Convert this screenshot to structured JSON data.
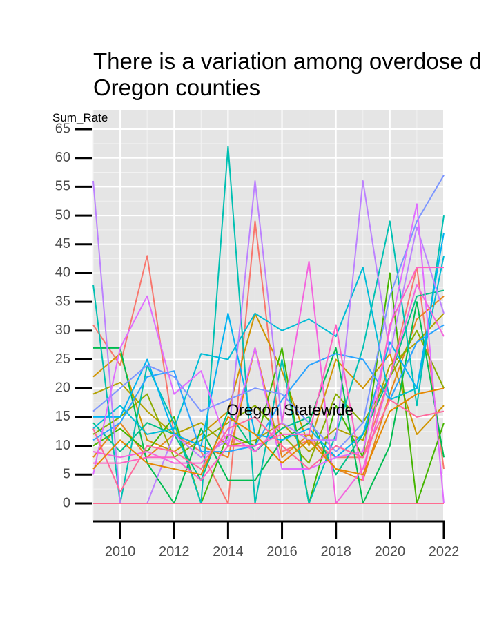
{
  "title_lines": [
    "There is a variation among overdose d",
    "Oregon counties"
  ],
  "chart_data": {
    "type": "line",
    "title": "There is a variation among overdose d Oregon counties",
    "ylabel": "Sum_Rate",
    "xlabel": "",
    "xlim": [
      2009,
      2022
    ],
    "ylim": [
      0,
      65
    ],
    "x_ticks": [
      2010,
      2012,
      2014,
      2016,
      2018,
      2020,
      2022
    ],
    "y_ticks": [
      0,
      5,
      10,
      15,
      20,
      25,
      30,
      35,
      40,
      45,
      50,
      55,
      60,
      65
    ],
    "grid": true,
    "legend": "none",
    "annotations": [
      {
        "text": "Oregon Statewide",
        "x": 2016.3,
        "y": 16
      }
    ],
    "x": [
      2009,
      2010,
      2011,
      2012,
      2013,
      2014,
      2015,
      2016,
      2017,
      2018,
      2019,
      2020,
      2021,
      2022
    ],
    "series": [
      {
        "color": "#F8766D",
        "values": [
          31,
          24,
          43,
          12,
          9,
          0,
          49,
          9,
          11,
          8,
          8,
          22,
          41,
          6
        ]
      },
      {
        "color": "#E7851E",
        "values": [
          8,
          14,
          8,
          12,
          10,
          8,
          27,
          8,
          12,
          6,
          4,
          19,
          32,
          36
        ]
      },
      {
        "color": "#D09400",
        "values": [
          22,
          26,
          11,
          9,
          12,
          16,
          33,
          23,
          10,
          25,
          20,
          26,
          12,
          17
        ]
      },
      {
        "color": "#B2A100",
        "values": [
          19,
          21,
          16,
          12,
          14,
          10,
          11,
          14,
          9,
          13,
          11,
          24,
          28,
          33
        ]
      },
      {
        "color": "#89AC00",
        "values": [
          12,
          15,
          19,
          8,
          11,
          14,
          17,
          12,
          7,
          19,
          14,
          22,
          30,
          20
        ]
      },
      {
        "color": "#45B500",
        "values": [
          10,
          13,
          9,
          15,
          0,
          12,
          10,
          27,
          0,
          17,
          8,
          40,
          0,
          14
        ]
      },
      {
        "color": "#00BC51",
        "values": [
          27,
          27,
          7,
          0,
          13,
          4,
          4,
          11,
          14,
          27,
          0,
          10,
          35,
          8
        ]
      },
      {
        "color": "#00C087",
        "values": [
          14,
          9,
          14,
          12,
          4,
          16,
          9,
          13,
          15,
          5,
          12,
          22,
          36,
          37
        ]
      },
      {
        "color": "#00C0B2",
        "values": [
          38,
          0,
          24,
          14,
          0,
          62,
          0,
          25,
          0,
          12,
          27,
          49,
          17,
          50
        ]
      },
      {
        "color": "#00BCD6",
        "values": [
          13,
          17,
          12,
          13,
          26,
          25,
          33,
          30,
          32,
          29,
          41,
          18,
          20,
          43
        ]
      },
      {
        "color": "#00B3F2",
        "values": [
          15,
          15,
          25,
          12,
          10,
          33,
          12,
          11,
          13,
          8,
          12,
          28,
          20,
          47
        ]
      },
      {
        "color": "#29A3FF",
        "values": [
          11,
          14,
          22,
          23,
          9,
          9,
          10,
          18,
          24,
          26,
          25,
          18,
          28,
          31
        ]
      },
      {
        "color": "#7C96FF",
        "values": [
          16,
          20,
          24,
          22,
          16,
          18,
          20,
          19,
          14,
          9,
          14,
          36,
          49,
          57
        ]
      },
      {
        "color": "#BC81FF",
        "values": [
          56,
          0,
          0,
          12,
          8,
          11,
          56,
          14,
          11,
          11,
          56,
          26,
          48,
          33
        ]
      },
      {
        "color": "#E06DFF",
        "values": [
          5,
          27,
          36,
          19,
          23,
          10,
          27,
          6,
          6,
          8,
          9,
          30,
          52,
          0
        ]
      },
      {
        "color": "#F464DE",
        "values": [
          9,
          8,
          9,
          7,
          7,
          12,
          9,
          14,
          42,
          0,
          6,
          22,
          38,
          29
        ]
      },
      {
        "color": "#FF61C3",
        "values": [
          7,
          7,
          8,
          8,
          4,
          10,
          10,
          12,
          12,
          31,
          4,
          31,
          41,
          41
        ]
      },
      {
        "color": "#FF6C91",
        "values": [
          0,
          0,
          0,
          0,
          0,
          0,
          0,
          0,
          0,
          0,
          0,
          0,
          0,
          0
        ]
      },
      {
        "color": "#FF699C",
        "values": [
          13,
          2,
          10,
          9,
          6,
          13,
          15,
          10,
          6,
          10,
          8,
          18,
          15,
          16
        ]
      },
      {
        "color": "#E58700",
        "values": [
          6,
          11,
          7,
          6,
          5,
          15,
          12,
          7,
          11,
          6,
          5,
          16,
          19,
          20
        ]
      }
    ]
  }
}
